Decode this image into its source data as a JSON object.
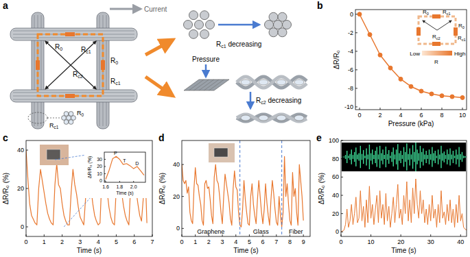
{
  "chart_data": [
    {
      "type": "line",
      "title": "b",
      "x_label": "Pressure (kPa)",
      "y_label": "ΔR/R₀",
      "x": [
        0,
        1,
        2,
        3,
        4,
        5,
        6,
        7,
        8,
        9,
        10
      ],
      "values": [
        0,
        -2.2,
        -4.4,
        -5.8,
        -7,
        -7.8,
        -8.3,
        -8.6,
        -8.8,
        -8.9,
        -9
      ],
      "color": "#e8772e",
      "marker": "circle",
      "xlim": [
        -0.4,
        10.4
      ],
      "ylim": [
        -10.3,
        0.5
      ],
      "xticks": [
        0,
        2,
        4,
        6,
        8,
        10
      ],
      "yticks": [
        -10,
        -8,
        -6,
        -4,
        -2,
        0
      ]
    },
    {
      "type": "line",
      "title": "c",
      "x_label": "Time (s)",
      "y_label": "ΔR/R₀ (%)",
      "x": [
        0,
        0.1,
        0.2,
        0.3,
        0.4,
        0.5,
        0.6,
        0.7,
        0.8,
        0.9,
        1,
        1.1,
        1.2,
        1.3,
        1.4,
        1.5,
        1.6,
        1.7,
        1.8,
        1.9,
        2,
        2.1,
        2.2,
        2.3,
        2.4,
        2.5,
        2.6,
        2.7,
        2.8,
        2.9,
        3,
        3.1,
        3.2,
        3.3,
        3.4,
        3.5,
        3.6,
        3.7,
        3.8,
        3.9,
        4,
        4.1,
        4.2,
        4.3,
        4.4,
        4.5,
        4.6,
        4.7,
        4.8,
        4.9,
        5,
        5.1,
        5.2,
        5.3,
        5.4,
        5.5,
        5.6,
        5.7,
        5.8,
        5.9,
        6,
        6.1,
        6.2,
        6.3,
        6.4,
        6.5,
        6.6,
        6.7
      ],
      "values": [
        40,
        25,
        12,
        6,
        4,
        2,
        1,
        20,
        30,
        24,
        18,
        12,
        7,
        4,
        2,
        1,
        22,
        33,
        22,
        20,
        12,
        6,
        3,
        1,
        1,
        18,
        30,
        22,
        17,
        10,
        5,
        3,
        1,
        15,
        35,
        25,
        20,
        12,
        6,
        3,
        1,
        2,
        25,
        33,
        22,
        18,
        10,
        5,
        2,
        1,
        20,
        33,
        24,
        18,
        11,
        6,
        3,
        1,
        22,
        35,
        25,
        19,
        12,
        6,
        3,
        15,
        30,
        2
      ],
      "color": "#e8772e",
      "xlim": [
        0,
        7
      ],
      "ylim": [
        -5,
        45
      ],
      "xticks": [
        0,
        1,
        2,
        3,
        4,
        5,
        6,
        7
      ],
      "yticks": [
        0,
        20,
        40
      ]
    },
    {
      "type": "line",
      "x_label": "Time (s)",
      "y_label": "ΔR/R₀ (%)",
      "x": [
        1.6,
        1.65,
        1.7,
        1.75,
        1.8,
        1.85,
        1.9,
        1.95,
        2,
        2.05,
        2.1,
        2.15
      ],
      "values": [
        2,
        15,
        31,
        34,
        30,
        23,
        24,
        21,
        17,
        20,
        14,
        8
      ],
      "color": "#e8772e",
      "xlim": [
        1.58,
        2.17
      ],
      "ylim": [
        -2,
        40
      ],
      "xticks": [
        1.6,
        1.8,
        {
          "value": 2,
          "label": "2.0"
        }
      ],
      "yticks": [
        0,
        10,
        20,
        30
      ],
      "annotations": [
        {
          "text": "P",
          "x": 1.74,
          "y": 35
        },
        {
          "text": "T",
          "x": 1.87,
          "y": 25
        },
        {
          "text": "D",
          "x": 2.05,
          "y": 21
        }
      ]
    },
    {
      "type": "line",
      "title": "d",
      "x_label": "Time (s)",
      "y_label": "ΔR/R₀ (%)",
      "x": [
        0,
        0.1,
        0.2,
        0.3,
        0.4,
        0.5,
        0.6,
        0.7,
        0.8,
        0.9,
        1,
        1.1,
        1.2,
        1.3,
        1.4,
        1.5,
        1.6,
        1.7,
        1.8,
        1.9,
        2,
        2.1,
        2.2,
        2.3,
        2.4,
        2.5,
        2.6,
        2.7,
        2.8,
        2.9,
        3,
        3.1,
        3.2,
        3.3,
        3.4,
        3.5,
        3.6,
        3.7,
        3.8,
        3.9,
        4,
        4.1,
        4.2,
        4.3,
        4.4,
        4.5,
        4.6,
        4.7,
        4.8,
        4.9,
        5,
        5.1,
        5.2,
        5.3,
        5.4,
        5.5,
        5.6,
        5.7,
        5.8,
        5.9,
        6,
        6.1,
        6.2,
        6.3,
        6.4,
        6.5,
        6.6,
        6.7,
        6.8,
        6.9,
        7,
        7.1,
        7.2,
        7.3,
        7.4,
        7.5,
        7.6,
        7.7,
        7.8,
        7.9,
        8,
        8.1,
        8.2,
        8.3,
        8.4,
        8.5,
        8.6,
        8.7,
        8.8,
        8.9,
        9
      ],
      "values": [
        40,
        30,
        28,
        30,
        22,
        26,
        10,
        5,
        3,
        25,
        38,
        28,
        27,
        20,
        15,
        5,
        2,
        28,
        30,
        25,
        26,
        18,
        8,
        3,
        32,
        40,
        30,
        28,
        20,
        10,
        3,
        20,
        34,
        28,
        22,
        16,
        6,
        2,
        25,
        36,
        26,
        24,
        10,
        2,
        1,
        12,
        30,
        18,
        10,
        3,
        2,
        20,
        28,
        15,
        8,
        3,
        18,
        30,
        20,
        10,
        3,
        12,
        28,
        16,
        8,
        2,
        18,
        30,
        22,
        12,
        4,
        2,
        20,
        8,
        1,
        10,
        45,
        20,
        28,
        15,
        5,
        2,
        35,
        20,
        25,
        10,
        2,
        40,
        30,
        20,
        5
      ],
      "color": "#e8772e",
      "xlim": [
        0,
        9.5
      ],
      "ylim": [
        -5,
        55
      ],
      "xticks": [
        0,
        1,
        2,
        3,
        4,
        5,
        6,
        7,
        8,
        9
      ],
      "yticks": [
        0,
        20,
        40
      ],
      "dividers": [
        4.3,
        7.4
      ],
      "segments": [
        "Graphene",
        "Glass",
        "Fiber"
      ]
    },
    {
      "type": "line",
      "title": "e",
      "x_label": "Time (s)",
      "y_label": "ΔR/R₀ (%)",
      "x": [
        0,
        0.5,
        1,
        1.5,
        2,
        2.5,
        3,
        3.5,
        4,
        4.5,
        5,
        5.5,
        6,
        6.5,
        7,
        7.5,
        8,
        8.5,
        9,
        9.5,
        10,
        10.5,
        11,
        11.5,
        12,
        12.5,
        13,
        13.5,
        14,
        14.5,
        15,
        15.5,
        16,
        16.5,
        17,
        17.5,
        18,
        18.5,
        19,
        19.5,
        20,
        20.5,
        21,
        21.5,
        22,
        22.5,
        23,
        23.5,
        24,
        24.5,
        25,
        25.5,
        26,
        26.5,
        27,
        27.5,
        28,
        28.5,
        29,
        29.5,
        30,
        30.5,
        31,
        31.5,
        32,
        32.5,
        33,
        33.5,
        34,
        34.5,
        35,
        35.5,
        36,
        36.5,
        37,
        37.5,
        38,
        38.5,
        39,
        39.5,
        40,
        40.5,
        41,
        41.5,
        42
      ],
      "values": [
        0,
        1,
        2,
        8,
        25,
        5,
        12,
        30,
        8,
        20,
        38,
        10,
        15,
        45,
        12,
        28,
        5,
        35,
        10,
        50,
        15,
        30,
        8,
        25,
        40,
        10,
        45,
        15,
        30,
        8,
        42,
        12,
        28,
        5,
        20,
        38,
        10,
        30,
        52,
        15,
        25,
        8,
        40,
        20,
        55,
        12,
        35,
        10,
        48,
        20,
        58,
        30,
        15,
        45,
        20,
        35,
        10,
        25,
        8,
        30,
        12,
        40,
        15,
        25,
        5,
        30,
        10,
        45,
        15,
        22,
        8,
        30,
        12,
        35,
        10,
        25,
        5,
        30,
        10,
        40,
        12,
        20,
        5,
        3,
        2
      ],
      "color": "#e8772e",
      "xlim": [
        0,
        42
      ],
      "ylim": [
        -5,
        100
      ],
      "xticks": [
        0,
        10,
        20,
        30,
        40
      ],
      "yticks": [
        0,
        20,
        40,
        60,
        80,
        100
      ]
    }
  ],
  "diagram": {
    "panel_label": "a",
    "current": "Current",
    "pressure": "Pressure",
    "r0": "R0",
    "rc1": "Rc1",
    "rc2": "Rc2",
    "rc1_decreasing": "Rc1 decreasing",
    "rc2_decreasing": "Rc2 decreasing"
  },
  "pressure_inset": {
    "r0": "R0",
    "rc1": "Rc1",
    "rc2": "Rc2",
    "low": "Low",
    "high": "High",
    "r": "R"
  }
}
